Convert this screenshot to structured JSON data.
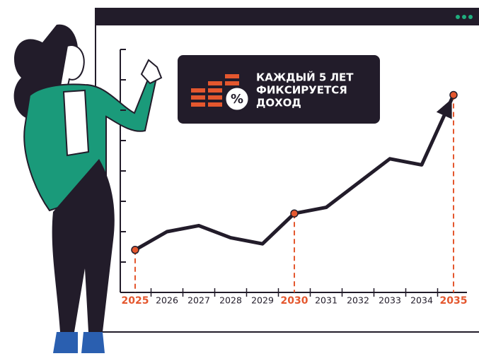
{
  "chart_data": {
    "type": "line",
    "callout": [
      "КАЖДЫЙ 5 ЛЕТ",
      "ФИКСИРУЕТСЯ",
      "ДОХОД"
    ],
    "categories": [
      "2025",
      "2026",
      "2027",
      "2028",
      "2029",
      "2030",
      "2031",
      "2032",
      "2033",
      "2034",
      "2035"
    ],
    "values": [
      1.4,
      2.0,
      2.2,
      1.8,
      1.6,
      2.6,
      2.8,
      3.6,
      4.4,
      4.2,
      6.5
    ],
    "color": "#221c2a",
    "highlight_color": "#e4572e",
    "ylim": [
      0,
      8
    ],
    "yticks": [
      1,
      2,
      3,
      4,
      5,
      6,
      7,
      8
    ]
  }
}
